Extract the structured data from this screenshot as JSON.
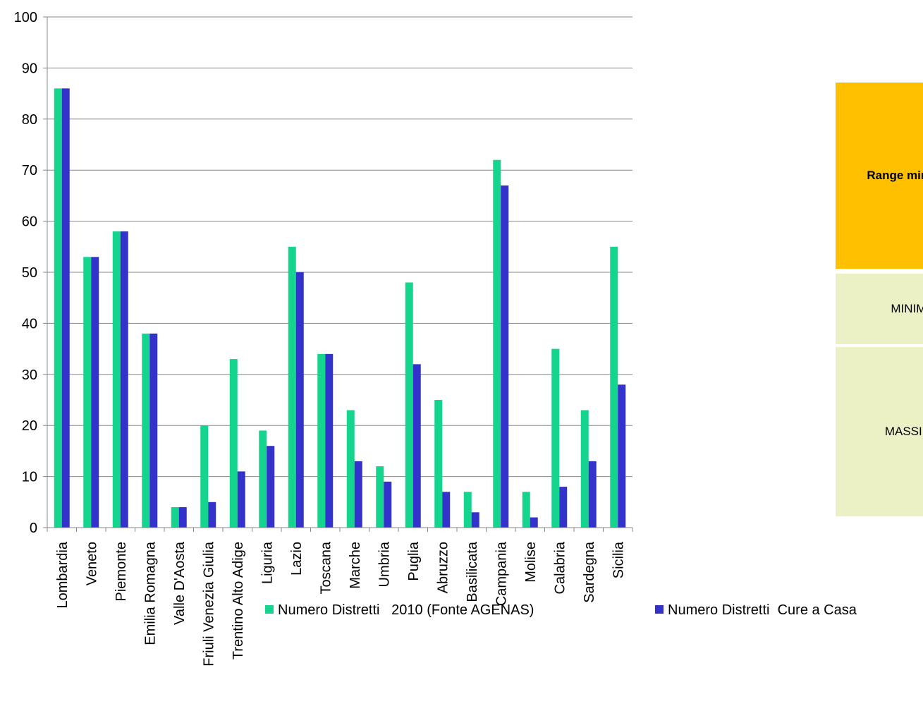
{
  "chart_data": {
    "type": "bar",
    "categories": [
      "Lombardia",
      "Veneto",
      "Piemonte",
      "Emilia Romagna",
      "Valle D'Aosta",
      "Friuli Venezia Giulia",
      "Trentino Alto Adige",
      "Liguria",
      "Lazio",
      "Toscana",
      "Marche",
      "Umbria",
      "Puglia",
      "Abruzzo",
      "Basilicata",
      "Campania",
      "Molise",
      "Calabria",
      "Sardegna",
      "Sicilia"
    ],
    "series": [
      {
        "name": "Numero Distretti   2010 (Fonte AGENAS)",
        "color": "#14D48E",
        "values": [
          86,
          53,
          58,
          38,
          4,
          20,
          33,
          19,
          55,
          34,
          23,
          12,
          48,
          25,
          7,
          72,
          7,
          35,
          23,
          55
        ]
      },
      {
        "name": "Numero Distretti  Cure a Casa",
        "color": "#3333CC",
        "values": [
          86,
          53,
          58,
          38,
          4,
          5,
          11,
          16,
          50,
          34,
          13,
          9,
          32,
          7,
          3,
          67,
          2,
          8,
          13,
          28
        ]
      }
    ],
    "ylim": [
      0,
      100
    ],
    "yticks": [
      0,
      10,
      20,
      30,
      40,
      50,
      60,
      70,
      80,
      90,
      100
    ],
    "grid": true,
    "legend_position": "bottom"
  },
  "side_table": {
    "header": "Range min.-max",
    "header_bg": "#FFC000",
    "rows": [
      "MINIMO",
      "MASSIMO"
    ],
    "row_bg": "#EBF1C5"
  }
}
